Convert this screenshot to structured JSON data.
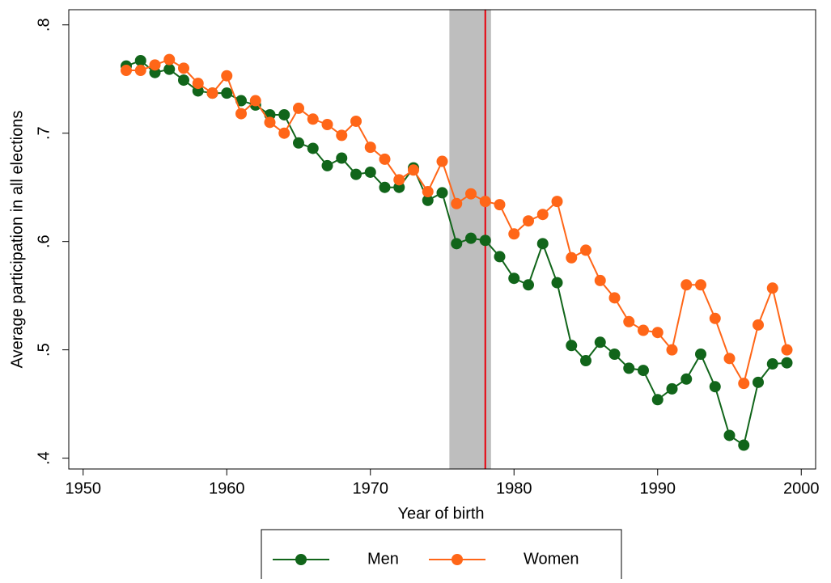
{
  "chart_data": {
    "type": "line",
    "x_label": "Year of birth",
    "y_label": "Average participation in all elections",
    "x": [
      1953,
      1954,
      1955,
      1956,
      1957,
      1958,
      1959,
      1960,
      1961,
      1962,
      1963,
      1964,
      1965,
      1966,
      1967,
      1968,
      1969,
      1970,
      1971,
      1972,
      1973,
      1974,
      1975,
      1976,
      1977,
      1978,
      1979,
      1980,
      1981,
      1982,
      1983,
      1984,
      1985,
      1986,
      1987,
      1988,
      1989,
      1990,
      1991,
      1992,
      1993,
      1994,
      1995,
      1996,
      1997,
      1998,
      1999
    ],
    "series": [
      {
        "name": "Men",
        "color": "#11651a",
        "values": [
          0.762,
          0.767,
          0.756,
          0.759,
          0.749,
          0.739,
          0.737,
          0.737,
          0.73,
          0.726,
          0.717,
          0.717,
          0.691,
          0.686,
          0.67,
          0.677,
          0.662,
          0.664,
          0.65,
          0.65,
          0.668,
          0.638,
          0.645,
          0.598,
          0.603,
          0.601,
          0.586,
          0.566,
          0.56,
          0.598,
          0.562,
          0.504,
          0.49,
          0.507,
          0.496,
          0.483,
          0.481,
          0.454,
          0.464,
          0.473,
          0.496,
          0.466,
          0.421,
          0.412,
          0.47,
          0.487,
          0.488
        ]
      },
      {
        "name": "Women",
        "color": "#ff6618",
        "values": [
          0.758,
          0.758,
          0.763,
          0.768,
          0.76,
          0.746,
          0.737,
          0.753,
          0.718,
          0.73,
          0.71,
          0.7,
          0.723,
          0.713,
          0.708,
          0.698,
          0.711,
          0.687,
          0.676,
          0.657,
          0.666,
          0.646,
          0.674,
          0.635,
          0.644,
          0.637,
          0.634,
          0.607,
          0.619,
          0.625,
          0.637,
          0.585,
          0.592,
          0.564,
          0.548,
          0.526,
          0.518,
          0.516,
          0.5,
          0.56,
          0.56,
          0.529,
          0.492,
          0.469,
          0.523,
          0.557,
          0.5
        ]
      }
    ],
    "xlim": [
      1949,
      2001
    ],
    "ylim": [
      0.39,
      0.814
    ],
    "xticks": [
      1950,
      1960,
      1970,
      1980,
      1990,
      2000
    ],
    "yticks": [
      {
        "value": 0.4,
        "label": ".4"
      },
      {
        "value": 0.5,
        "label": ".5"
      },
      {
        "value": 0.6,
        "label": ".6"
      },
      {
        "value": 0.7,
        "label": ".7"
      },
      {
        "value": 0.8,
        "label": ".8"
      }
    ],
    "shade": [
      1975.5,
      1978.4
    ],
    "shade_color": "#bebebe",
    "vline": 1978,
    "vline_color": "#e8000b"
  }
}
